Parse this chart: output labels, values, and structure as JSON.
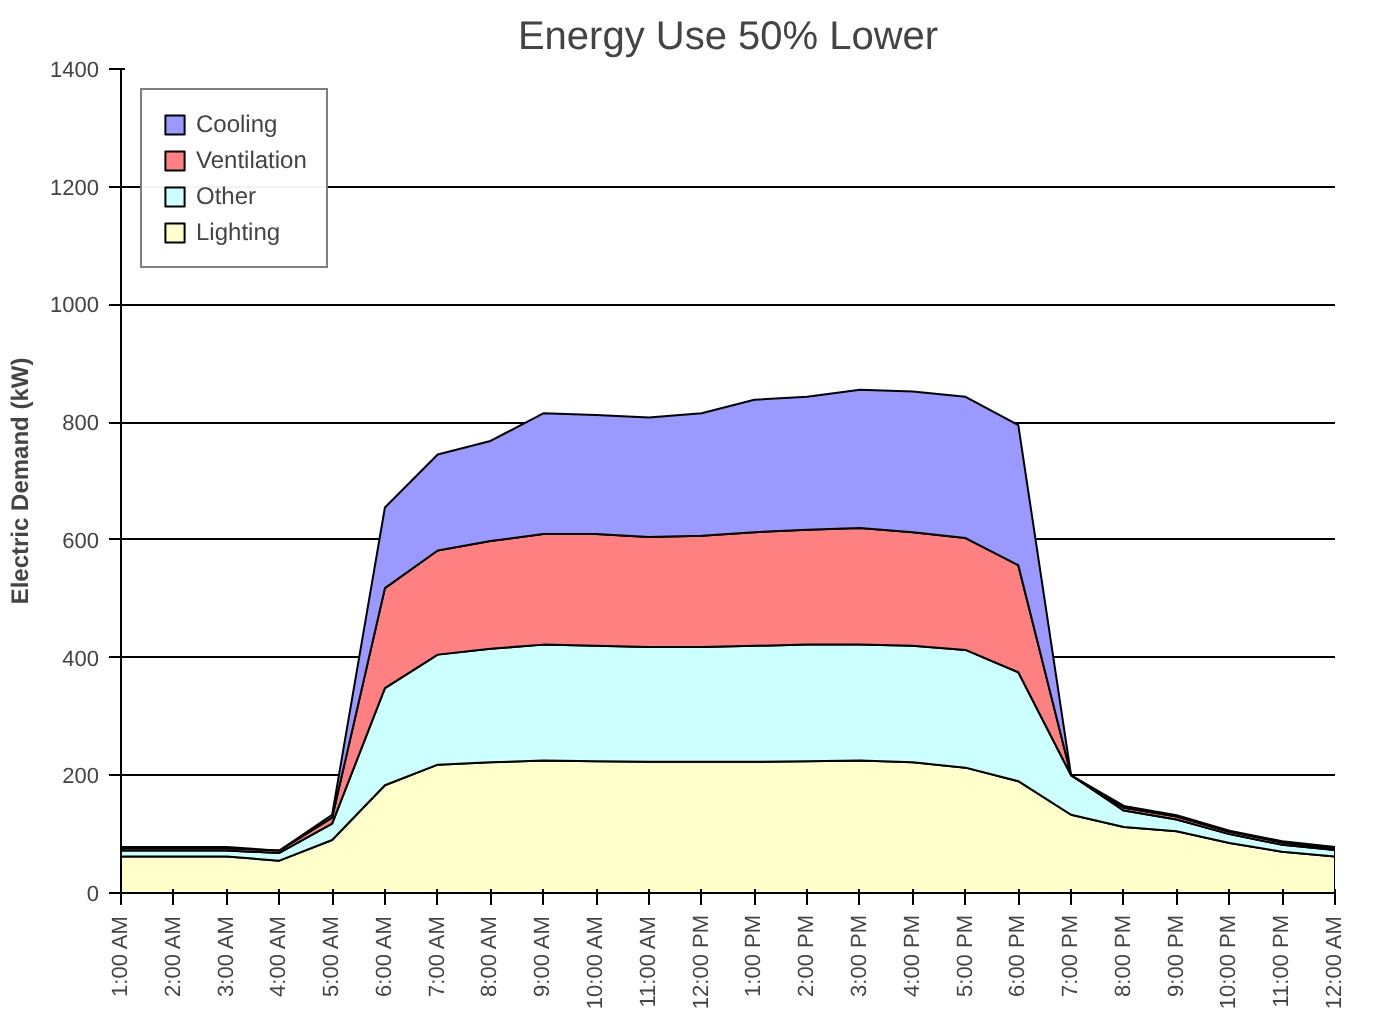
{
  "chart_data": {
    "type": "area",
    "title": "Energy Use 50% Lower",
    "ylabel": "Electric Demand (kW)",
    "stacked": true,
    "categories": [
      "1:00 AM",
      "2:00 AM",
      "3:00 AM",
      "4:00 AM",
      "5:00 AM",
      "6:00 AM",
      "7:00 AM",
      "8:00 AM",
      "9:00 AM",
      "10:00 AM",
      "11:00 AM",
      "12:00 PM",
      "1:00 PM",
      "2:00 PM",
      "3:00 PM",
      "4:00 PM",
      "5:00 PM",
      "6:00 PM",
      "7:00 PM",
      "8:00 PM",
      "9:00 PM",
      "10:00 PM",
      "11:00 PM",
      "12:00 AM"
    ],
    "series": [
      {
        "name": "Lighting",
        "color": "#ffffcc",
        "values": [
          62,
          62,
          62,
          55,
          90,
          183,
          218,
          222,
          225,
          224,
          223,
          223,
          223,
          224,
          225,
          222,
          213,
          190,
          133,
          112,
          105,
          85,
          70,
          62
        ]
      },
      {
        "name": "Other",
        "color": "#ccffff",
        "values": [
          10,
          10,
          10,
          13,
          28,
          165,
          187,
          193,
          197,
          196,
          195,
          195,
          197,
          198,
          197,
          198,
          200,
          185,
          67,
          28,
          20,
          15,
          12,
          11
        ]
      },
      {
        "name": "Ventilation",
        "color": "#ff8080",
        "values": [
          4,
          4,
          4,
          4,
          10,
          170,
          177,
          183,
          188,
          190,
          187,
          189,
          193,
          195,
          198,
          193,
          190,
          182,
          0,
          5,
          5,
          4,
          4,
          3
        ]
      },
      {
        "name": "Cooling",
        "color": "#9999ff",
        "values": [
          2,
          2,
          2,
          0,
          5,
          137,
          163,
          170,
          205,
          202,
          203,
          208,
          225,
          226,
          235,
          239,
          240,
          238,
          0,
          3,
          2,
          2,
          2,
          2
        ]
      }
    ],
    "ylim": [
      0,
      1400
    ],
    "yticks": [
      0,
      200,
      400,
      600,
      800,
      1000,
      1200,
      1400
    ],
    "grid": "y",
    "legend": "top left"
  }
}
